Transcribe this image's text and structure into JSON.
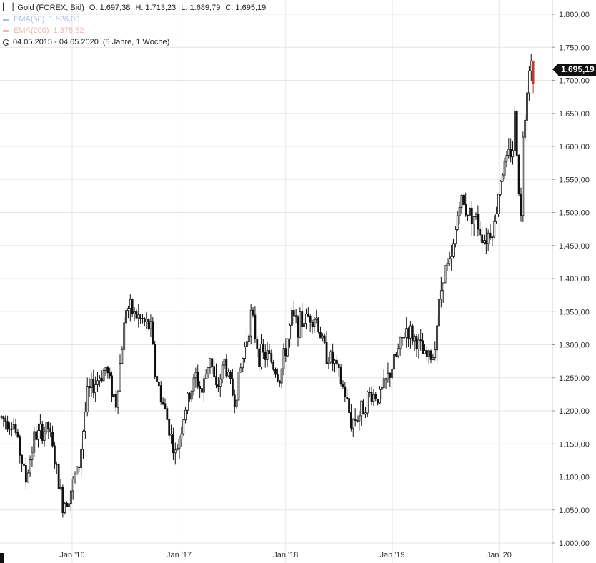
{
  "legend": {
    "instrument": "Gold (FOREX, Bid)",
    "open": "O: 1.697,38",
    "high": "H: 1.713,23",
    "low": "L: 1.689,79",
    "close": "C: 1.695,19",
    "ema50_label": "EMA(50)",
    "ema50_value": "1.526,00",
    "ema200_label": "EMA(200)",
    "ema200_value": "1.375,52",
    "range_text": "04.05.2015 - 04.05.2020",
    "range_detail": "(5 Jahre, 1 Woche)"
  },
  "price_badge": "1.695,19",
  "colors": {
    "ema50": "#aebfe0",
    "ema200": "#f0b9b0",
    "candle": "#111111",
    "last_candle": "#c0392b",
    "grid": "#e6e6e6"
  },
  "chart_data": {
    "type": "candlestick",
    "title": "Gold (FOREX, Bid)",
    "x_range": [
      "2015-05-04",
      "2020-05-04"
    ],
    "ylim": [
      1000,
      1800
    ],
    "y_ticks": [
      "1.000,00",
      "1.050,00",
      "1.100,00",
      "1.150,00",
      "1.200,00",
      "1.250,00",
      "1.300,00",
      "1.350,00",
      "1.400,00",
      "1.450,00",
      "1.500,00",
      "1.550,00",
      "1.600,00",
      "1.650,00",
      "1.700,00",
      "1.750,00",
      "1.800,00"
    ],
    "x_ticks": [
      {
        "label": "Jan '16",
        "date": "2016-01-01"
      },
      {
        "label": "Jan '17",
        "date": "2017-01-01"
      },
      {
        "label": "Jan '18",
        "date": "2018-01-01"
      },
      {
        "label": "Jan '19",
        "date": "2019-01-01"
      },
      {
        "label": "Jan '20",
        "date": "2020-01-01"
      }
    ],
    "grid": true,
    "last_close": 1695.19,
    "close_path": [
      [
        "2015-05-04",
        1190
      ],
      [
        "2015-06-15",
        1180
      ],
      [
        "2015-07-27",
        1095
      ],
      [
        "2015-08-24",
        1160
      ],
      [
        "2015-10-12",
        1175
      ],
      [
        "2015-11-30",
        1058
      ],
      [
        "2015-12-21",
        1072
      ],
      [
        "2016-01-25",
        1118
      ],
      [
        "2016-02-22",
        1225
      ],
      [
        "2016-04-25",
        1265
      ],
      [
        "2016-05-30",
        1212
      ],
      [
        "2016-07-04",
        1358
      ],
      [
        "2016-08-22",
        1338
      ],
      [
        "2016-09-26",
        1325
      ],
      [
        "2016-10-10",
        1258
      ],
      [
        "2016-11-28",
        1175
      ],
      [
        "2016-12-19",
        1132
      ],
      [
        "2017-01-23",
        1205
      ],
      [
        "2017-02-27",
        1252
      ],
      [
        "2017-03-20",
        1228
      ],
      [
        "2017-04-17",
        1285
      ],
      [
        "2017-05-08",
        1228
      ],
      [
        "2017-06-05",
        1275
      ],
      [
        "2017-07-10",
        1215
      ],
      [
        "2017-09-04",
        1345
      ],
      [
        "2017-10-02",
        1285
      ],
      [
        "2017-11-06",
        1282
      ],
      [
        "2017-12-11",
        1248
      ],
      [
        "2018-01-22",
        1340
      ],
      [
        "2018-02-12",
        1330
      ],
      [
        "2018-03-26",
        1345
      ],
      [
        "2018-04-16",
        1340
      ],
      [
        "2018-05-14",
        1292
      ],
      [
        "2018-06-18",
        1270
      ],
      [
        "2018-07-23",
        1225
      ],
      [
        "2018-08-13",
        1183
      ],
      [
        "2018-09-10",
        1195
      ],
      [
        "2018-10-15",
        1225
      ],
      [
        "2018-11-19",
        1222
      ],
      [
        "2018-12-17",
        1250
      ],
      [
        "2019-01-28",
        1298
      ],
      [
        "2019-02-18",
        1325
      ],
      [
        "2019-03-25",
        1305
      ],
      [
        "2019-04-22",
        1280
      ],
      [
        "2019-05-20",
        1283
      ],
      [
        "2019-06-24",
        1410
      ],
      [
        "2019-07-22",
        1425
      ],
      [
        "2019-08-19",
        1520
      ],
      [
        "2019-09-09",
        1505
      ],
      [
        "2019-10-07",
        1495
      ],
      [
        "2019-11-11",
        1460
      ],
      [
        "2019-12-16",
        1480
      ],
      [
        "2020-01-06",
        1555
      ],
      [
        "2020-02-17",
        1600
      ],
      [
        "2020-02-24",
        1645
      ],
      [
        "2020-03-16",
        1490
      ],
      [
        "2020-03-23",
        1620
      ],
      [
        "2020-04-06",
        1690
      ],
      [
        "2020-04-13",
        1725
      ],
      [
        "2020-04-20",
        1725
      ],
      [
        "2020-04-27",
        1695
      ]
    ]
  }
}
